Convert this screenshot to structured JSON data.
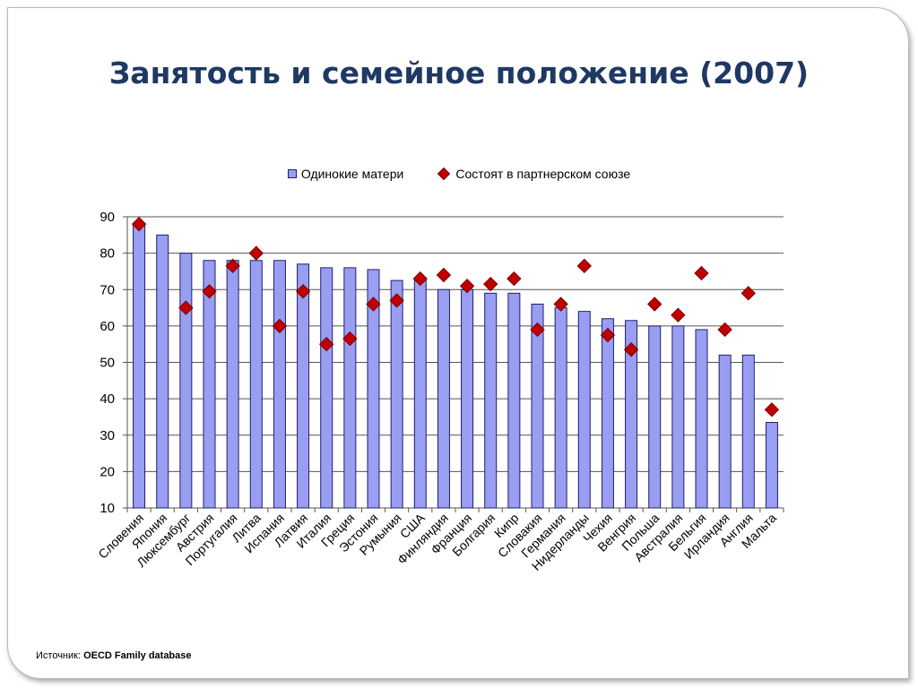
{
  "title": "Занятость и семейное положение (2007)",
  "legend": {
    "bars_label": "Одинокие матери",
    "diamonds_label": "Состоят в партнерском  союзе"
  },
  "source": {
    "prefix": "Источник:",
    "name": "OECD Family database"
  },
  "colors": {
    "bar_fill": "#9a9ef2",
    "bar_stroke": "#1f1f6a",
    "diamond_fill": "#c00000",
    "title": "#1f3864"
  },
  "chart_data": {
    "type": "bar",
    "ylim": [
      10,
      90
    ],
    "yticks": [
      10,
      20,
      30,
      40,
      50,
      60,
      70,
      80,
      90
    ],
    "grid": true,
    "legend_position": "top",
    "categories": [
      "Словения",
      "Япония",
      "Люксембург",
      "Австрия",
      "Португалия",
      "Литва",
      "Испания",
      "Латвия",
      "Италия",
      "Греция",
      "Эстония",
      "Румыния",
      "США",
      "Финляндия",
      "Франция",
      "Болгария",
      "Кипр",
      "Словакия",
      "Германия",
      "Нидерланды",
      "Чехия",
      "Венгрия",
      "Польша",
      "Австралия",
      "Бельгия",
      "Ирландия",
      "Англия",
      "Мальта"
    ],
    "series": [
      {
        "name": "Одинокие матери",
        "marker": "bar",
        "values": [
          88,
          85,
          80,
          78,
          78,
          78,
          78,
          77,
          76,
          76,
          75.5,
          72.5,
          72.5,
          70,
          70,
          69,
          69,
          66,
          65,
          64,
          62,
          61.5,
          60,
          60,
          59,
          52,
          52,
          33.5
        ]
      },
      {
        "name": "Состоят в партнерском  союзе",
        "marker": "diamond",
        "values": [
          88,
          null,
          65,
          69.5,
          76.5,
          80,
          60,
          69.5,
          55,
          56.5,
          66,
          67,
          73,
          74,
          71,
          71.5,
          73,
          59,
          66,
          76.5,
          57.5,
          53.5,
          66,
          63,
          74.5,
          59,
          69,
          37
        ]
      }
    ]
  }
}
